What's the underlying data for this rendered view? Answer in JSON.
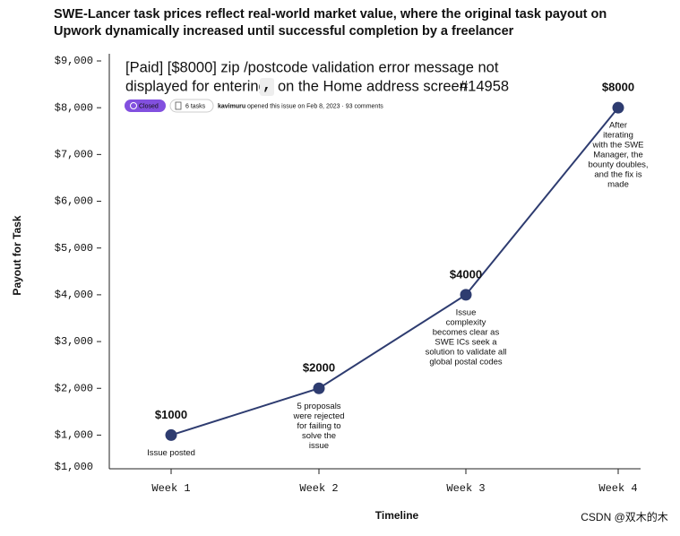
{
  "chart_data": {
    "type": "line",
    "title": [
      "SWE-Lancer task prices reflect real-world market value, where the original task payout on",
      "Upwork dynamically increased until successful completion by a freelancer"
    ],
    "x_label": "Timeline",
    "y_label": "Payout for Task",
    "categories": [
      "Week 1",
      "Week 2",
      "Week 3",
      "Week 4"
    ],
    "series": [
      {
        "name": "Payout",
        "color": "#2e3c70",
        "values": [
          1000,
          2000,
          4000,
          8000
        ],
        "value_labels": [
          "$1000",
          "$2000",
          "$4000",
          "$8000"
        ]
      }
    ],
    "point_notes": [
      [
        "Issue posted"
      ],
      [
        "5 proposals",
        "were rejected",
        "for failing to",
        "solve the",
        "issue"
      ],
      [
        "Issue",
        "complexity",
        "becomes clear as",
        "SWE ICs seek a",
        "solution to validate all",
        "global postal codes"
      ],
      [
        "After",
        "iterating",
        "with the SWE",
        "Manager, the",
        "bounty doubles,",
        "and the fix is",
        "made"
      ]
    ],
    "ylim": [
      280,
      9000
    ],
    "yticks": [
      {
        "value": 1000,
        "label": "$1,000"
      },
      {
        "value": 2000,
        "label": "$2,000"
      },
      {
        "value": 3000,
        "label": "$3,000"
      },
      {
        "value": 4000,
        "label": "$4,000"
      },
      {
        "value": 5000,
        "label": "$5,000"
      },
      {
        "value": 6000,
        "label": "$6,000"
      },
      {
        "value": 7000,
        "label": "$7,000"
      },
      {
        "value": 8000,
        "label": "$8,000"
      },
      {
        "value": 9000,
        "label": "$9,000"
      }
    ],
    "y_axis_bottom_label": "$1,000",
    "issue": {
      "line1": "[Paid] [$8000] zip /postcode validation error message not",
      "line2": "displayed for entering",
      "code": ",",
      "line2_end": "on the Home address screen",
      "number": "#14958",
      "badge": "Closed",
      "tasks": "6 tasks",
      "user": "kavimuru",
      "meta": "opened this issue on Feb 8, 2023 · 93 comments"
    }
  },
  "watermark": "CSDN @双木的木"
}
